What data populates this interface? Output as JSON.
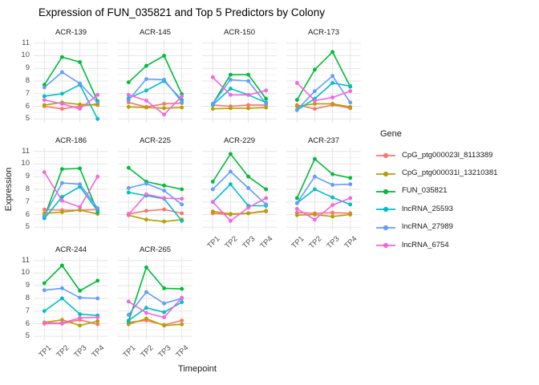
{
  "title": "Expression of FUN_035821 and Top 5 Predictors by Colony",
  "chart_data": {
    "type": "line",
    "facet_by": "Colony",
    "x": [
      "TP1",
      "TP2",
      "TP3",
      "TP4"
    ],
    "xlabel": "Timepoint",
    "ylabel": "Expression",
    "ylim": [
      4.7,
      11.3
    ],
    "yticks": [
      5,
      6,
      7,
      8,
      9,
      10,
      11
    ],
    "grid": true,
    "legend_title": "Gene",
    "legend_position": "right",
    "series": [
      {
        "name": "CpG_ptg000023l_8113389",
        "color": "#F8766D"
      },
      {
        "name": "CpG_ptg000031l_13210381",
        "color": "#B79F00"
      },
      {
        "name": "FUN_035821",
        "color": "#00BA38"
      },
      {
        "name": "lncRNA_25593",
        "color": "#00BFC4"
      },
      {
        "name": "lncRNA_27989",
        "color": "#619CFF"
      },
      {
        "name": "lncRNA_6754",
        "color": "#F564E2"
      }
    ],
    "facets": [
      {
        "name": "ACR-139",
        "values": [
          [
            6.0,
            5.8,
            6.0,
            6.2
          ],
          [
            6.1,
            6.3,
            6.15,
            6.1
          ],
          [
            7.7,
            9.9,
            9.5,
            6.4
          ],
          [
            6.8,
            7.0,
            7.7,
            5.0
          ],
          [
            7.5,
            8.7,
            7.8,
            6.3
          ],
          [
            6.5,
            6.2,
            5.8,
            6.9
          ]
        ]
      },
      {
        "name": "ACR-145",
        "values": [
          [
            6.3,
            5.95,
            6.2,
            6.25
          ],
          [
            5.95,
            5.9,
            5.85,
            5.9
          ],
          [
            7.9,
            9.2,
            10.0,
            6.95
          ],
          [
            6.65,
            7.25,
            8.0,
            6.5
          ],
          [
            6.5,
            8.15,
            8.1,
            6.35
          ],
          [
            6.9,
            6.45,
            5.35,
            6.8
          ]
        ]
      },
      {
        "name": "ACR-150",
        "values": [
          [
            6.1,
            6.0,
            6.1,
            6.1
          ],
          [
            5.8,
            5.85,
            5.85,
            5.9
          ],
          [
            6.2,
            8.5,
            8.5,
            6.6
          ],
          [
            6.1,
            7.4,
            6.9,
            6.3
          ],
          [
            6.2,
            8.1,
            8.0,
            6.2
          ],
          [
            8.3,
            6.9,
            6.9,
            7.25
          ]
        ]
      },
      {
        "name": "ACR-173",
        "values": [
          [
            6.1,
            5.8,
            6.1,
            5.85
          ],
          [
            6.0,
            6.2,
            6.2,
            5.95
          ],
          [
            6.5,
            8.9,
            10.3,
            7.55
          ],
          [
            5.7,
            6.6,
            7.85,
            7.6
          ],
          [
            5.7,
            7.2,
            8.4,
            6.3
          ],
          [
            7.85,
            6.45,
            6.7,
            7.2
          ]
        ]
      },
      {
        "name": "ACR-186",
        "values": [
          [
            6.4,
            6.35,
            6.35,
            6.4
          ],
          [
            6.1,
            6.2,
            6.35,
            6.05
          ],
          [
            5.8,
            9.6,
            9.65,
            6.2
          ],
          [
            5.7,
            7.4,
            8.2,
            6.3
          ],
          [
            5.9,
            8.5,
            8.4,
            6.5
          ],
          [
            9.35,
            7.1,
            6.6,
            9.0
          ]
        ]
      },
      {
        "name": "ACR-225",
        "values": [
          [
            6.05,
            6.3,
            6.4,
            6.1
          ],
          [
            5.95,
            5.6,
            5.45,
            5.6
          ],
          [
            9.7,
            8.6,
            8.3,
            8.0
          ],
          [
            7.75,
            7.5,
            7.25,
            5.5
          ],
          [
            8.1,
            8.45,
            7.9,
            6.8
          ],
          [
            6.0,
            7.6,
            7.3,
            7.25
          ]
        ]
      },
      {
        "name": "ACR-229",
        "values": [
          [
            6.1,
            6.0,
            6.1,
            6.25
          ],
          [
            6.25,
            6.05,
            6.1,
            6.3
          ],
          [
            8.6,
            10.8,
            9.0,
            8.0
          ],
          [
            7.0,
            8.4,
            6.7,
            6.7
          ],
          [
            8.0,
            9.4,
            8.1,
            6.8
          ],
          [
            7.0,
            5.5,
            6.55,
            7.3
          ]
        ]
      },
      {
        "name": "ACR-237",
        "values": [
          [
            6.15,
            6.1,
            6.15,
            6.1
          ],
          [
            5.95,
            6.0,
            5.85,
            6.0
          ],
          [
            7.3,
            10.4,
            9.2,
            8.9
          ],
          [
            6.9,
            8.0,
            7.35,
            6.8
          ],
          [
            6.9,
            9.0,
            8.35,
            8.4
          ],
          [
            6.45,
            5.6,
            6.75,
            7.3
          ]
        ]
      },
      {
        "name": "ACR-244",
        "values": [
          [
            6.0,
            6.0,
            6.3,
            5.95
          ],
          [
            6.1,
            6.3,
            5.85,
            6.2
          ],
          [
            9.2,
            10.6,
            8.6,
            9.4
          ],
          [
            7.0,
            8.0,
            6.75,
            6.65
          ],
          [
            8.65,
            8.8,
            8.05,
            8.0
          ],
          [
            6.05,
            6.05,
            6.45,
            6.5
          ]
        ]
      },
      {
        "name": "ACR-265",
        "values": [
          [
            6.1,
            6.25,
            5.9,
            6.25
          ],
          [
            5.95,
            6.4,
            5.85,
            5.95
          ],
          [
            6.2,
            10.45,
            8.8,
            8.75
          ],
          [
            6.25,
            7.25,
            6.9,
            7.7
          ],
          [
            6.7,
            8.5,
            7.6,
            8.0
          ],
          [
            7.75,
            6.85,
            6.5,
            8.05
          ]
        ]
      }
    ]
  }
}
